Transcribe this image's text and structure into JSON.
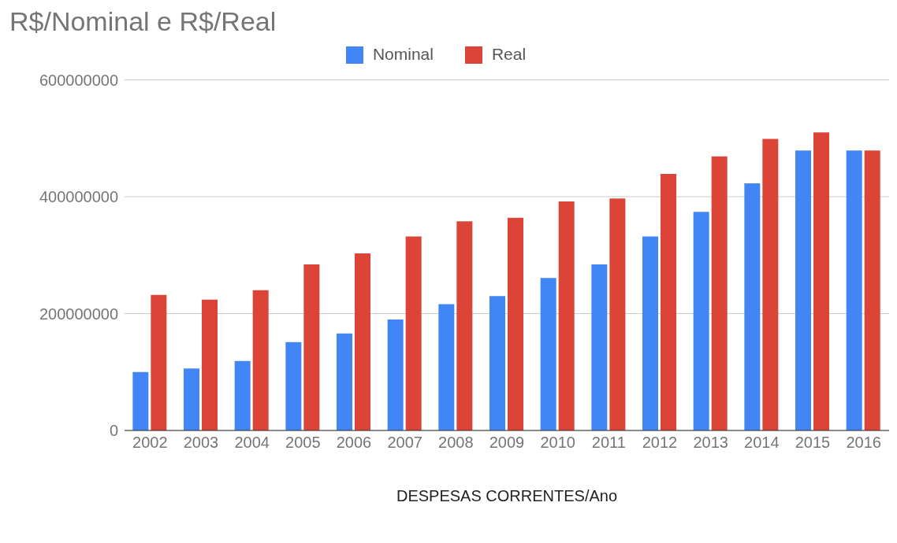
{
  "chart_data": {
    "type": "bar",
    "title": "R$/Nominal  e R$/Real",
    "xlabel": "DESPESAS CORRENTES/Ano",
    "categories": [
      "2002",
      "2003",
      "2004",
      "2005",
      "2006",
      "2007",
      "2008",
      "2009",
      "2010",
      "2011",
      "2012",
      "2013",
      "2014",
      "2015",
      "2016"
    ],
    "series": [
      {
        "name": "Nominal",
        "color": "#4285f4",
        "values": [
          100000000,
          106000000,
          119000000,
          151000000,
          166000000,
          190000000,
          216000000,
          230000000,
          261000000,
          284000000,
          332000000,
          374000000,
          423000000,
          479000000,
          479000000
        ]
      },
      {
        "name": "Real",
        "color": "#db4437",
        "values": [
          232000000,
          224000000,
          240000000,
          284000000,
          303000000,
          332000000,
          358000000,
          364000000,
          392000000,
          397000000,
          439000000,
          469000000,
          499000000,
          510000000,
          479000000
        ]
      }
    ],
    "ylim": [
      0,
      600000000
    ],
    "yticks": [
      0,
      200000000,
      400000000,
      600000000
    ],
    "grid": "y",
    "legend": "top"
  }
}
